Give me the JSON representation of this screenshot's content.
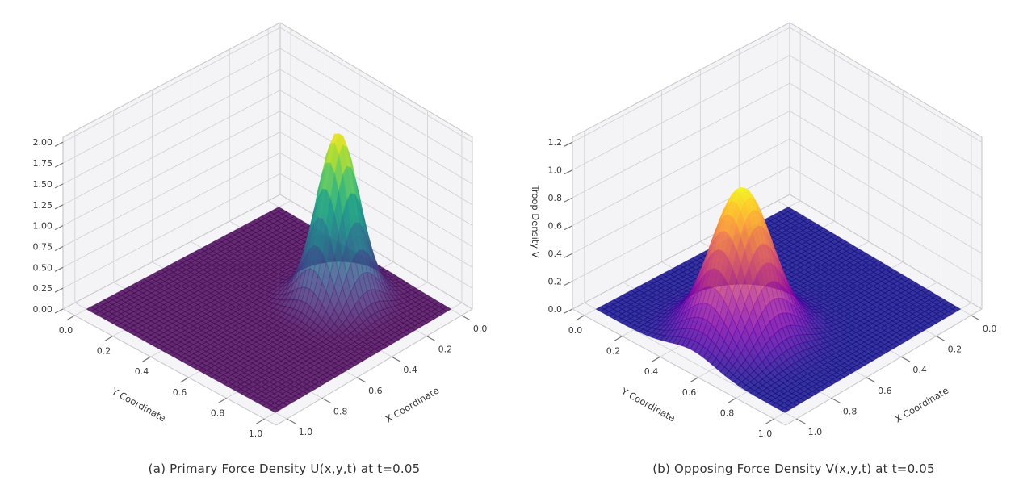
{
  "figure": {
    "background": "#ffffff",
    "description": "Two 3D Gaussian surface plots of force densities at t=0.05"
  },
  "style": {
    "wall_color": "#f4f4f6",
    "floor_color": "#f5f5f7",
    "grid_color": "#d6d6da",
    "edge_color": "#cdcdd2",
    "tick_color": "#767676",
    "tick_label_color": "#3a3a3a",
    "axis_label_color": "#3a3a3a",
    "caption_color": "#333333"
  },
  "chart_data": [
    {
      "type": "surface3d",
      "caption": "(a) Primary Force Density U(x,y,t) at t=0.05",
      "xlabel": "X Coordinate",
      "ylabel": "Y Coordinate",
      "zlabel": "",
      "x_tick_labels": [
        "0.0",
        "0.2",
        "0.4",
        "0.6",
        "0.8",
        "1.0"
      ],
      "y_tick_labels": [
        "0.0",
        "0.2",
        "0.4",
        "0.6",
        "0.8",
        "1.0"
      ],
      "z_tick_labels": [
        "0.00",
        "0.25",
        "0.50",
        "0.75",
        "1.00",
        "1.25",
        "1.50",
        "1.75",
        "2.00"
      ],
      "x_range": [
        0.0,
        1.0
      ],
      "y_range": [
        0.0,
        1.0
      ],
      "z_range": [
        0.0,
        2.0
      ],
      "grid": true,
      "colormap": "viridis",
      "colormap_stops": [
        "#440154",
        "#482878",
        "#3e4989",
        "#31688e",
        "#26828e",
        "#1f9e89",
        "#35b779",
        "#6ece58",
        "#b5de2b",
        "#fde725"
      ],
      "surface_alpha": 0.82,
      "surface": {
        "kind": "gaussian_peak",
        "amplitude": 2.0,
        "center_x": 0.27,
        "center_y": 0.63,
        "sigma": 0.085,
        "baseline": 0.0
      }
    },
    {
      "type": "surface3d",
      "caption": "(b) Opposing Force Density V(x,y,t) at t=0.05",
      "xlabel": "X Coordinate",
      "ylabel": "Y Coordinate",
      "zlabel": "Troop Density V",
      "x_tick_labels": [
        "0.0",
        "0.2",
        "0.4",
        "0.6",
        "0.8",
        "1.0"
      ],
      "y_tick_labels": [
        "0.0",
        "0.2",
        "0.4",
        "0.6",
        "0.8",
        "1.0"
      ],
      "z_tick_labels": [
        "0.0",
        "0.2",
        "0.4",
        "0.6",
        "0.8",
        "1.0",
        "1.2"
      ],
      "x_range": [
        0.0,
        1.0
      ],
      "y_range": [
        0.0,
        1.0
      ],
      "z_range": [
        0.0,
        1.2
      ],
      "grid": true,
      "colormap": "plasma",
      "colormap_stops": [
        "#0d0887",
        "#46039f",
        "#7201a8",
        "#9c179e",
        "#bd3786",
        "#d8576b",
        "#ed7953",
        "#fb9f3a",
        "#fdca26",
        "#f0f921"
      ],
      "surface_alpha": 0.82,
      "surface": {
        "kind": "gaussian_peak",
        "amplitude": 1.05,
        "center_x": 0.73,
        "center_y": 0.51,
        "sigma": 0.12,
        "baseline": 0.0
      }
    }
  ]
}
